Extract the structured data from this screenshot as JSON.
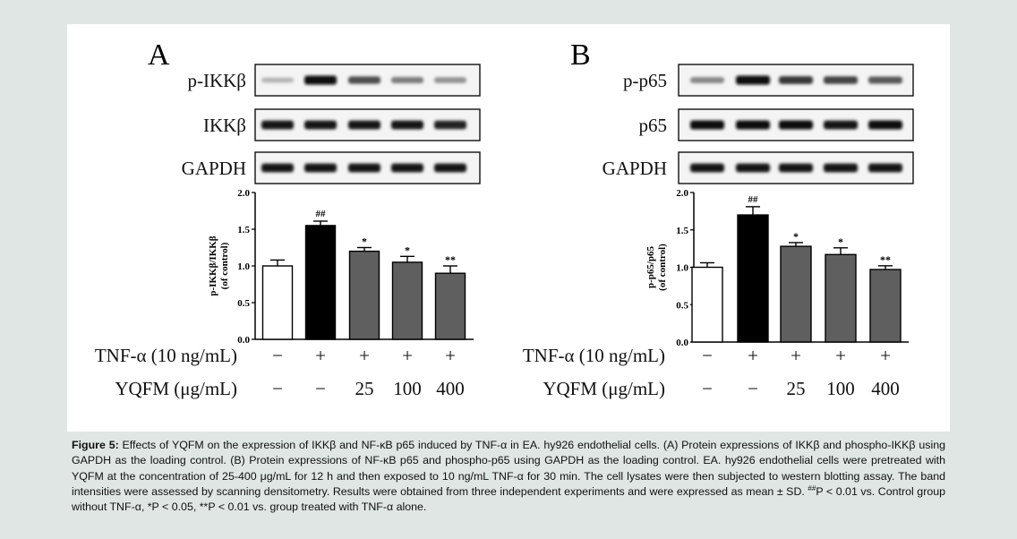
{
  "colors": {
    "background": "#dfe6e3",
    "panel": "#ffffff",
    "bar_black": "#000000",
    "bar_gray": "#5f5f5f",
    "bar_white": "#ffffff"
  },
  "panels": [
    {
      "letter": "A",
      "blots": [
        {
          "label": "p-IKKβ",
          "intensity": [
            0.25,
            1.0,
            0.7,
            0.5,
            0.4
          ]
        },
        {
          "label": "IKKβ",
          "intensity": [
            0.95,
            0.95,
            0.95,
            0.95,
            0.9
          ]
        },
        {
          "label": "GAPDH",
          "intensity": [
            0.95,
            0.95,
            0.95,
            0.95,
            0.95
          ]
        }
      ],
      "chart_data": {
        "type": "bar",
        "ylabel_line1": "p-IKKβ/IKKβ",
        "ylabel_line2": "(of control)",
        "ylim": [
          0,
          2.0
        ],
        "yticks": [
          "0.0",
          "0.5",
          "1.0",
          "1.5",
          "2.0"
        ],
        "values": [
          1.0,
          1.55,
          1.2,
          1.05,
          0.9
        ],
        "errors": [
          0.08,
          0.06,
          0.05,
          0.08,
          0.1
        ],
        "bar_colors": [
          "white",
          "black",
          "gray",
          "gray",
          "gray"
        ],
        "annotations": [
          "",
          "##",
          "*",
          "*",
          "**"
        ]
      },
      "conditions": [
        {
          "label": "TNF-α (10 ng/mL)",
          "values": [
            "−",
            "+",
            "+",
            "+",
            "+"
          ]
        },
        {
          "label": "YQFM (μg/mL)",
          "values": [
            "−",
            "−",
            "25",
            "100",
            "400"
          ]
        }
      ]
    },
    {
      "letter": "B",
      "blots": [
        {
          "label": "p-p65",
          "intensity": [
            0.45,
            1.0,
            0.8,
            0.75,
            0.65
          ]
        },
        {
          "label": "p65",
          "intensity": [
            1.0,
            1.0,
            1.0,
            0.95,
            1.0
          ]
        },
        {
          "label": "GAPDH",
          "intensity": [
            0.95,
            0.95,
            0.95,
            0.95,
            0.95
          ]
        }
      ],
      "chart_data": {
        "type": "bar",
        "ylabel_line1": "p-p65/p65",
        "ylabel_line2": "(of control)",
        "ylim": [
          0,
          2.0
        ],
        "yticks": [
          "0.0",
          "0.5",
          "1.0",
          "1.5",
          "2.0"
        ],
        "values": [
          1.0,
          1.7,
          1.28,
          1.17,
          0.97
        ],
        "errors": [
          0.06,
          0.11,
          0.05,
          0.09,
          0.05
        ],
        "bar_colors": [
          "white",
          "black",
          "gray",
          "gray",
          "gray"
        ],
        "annotations": [
          "",
          "##",
          "*",
          "*",
          "**"
        ]
      },
      "conditions": [
        {
          "label": "TNF-α (10 ng/mL)",
          "values": [
            "−",
            "+",
            "+",
            "+",
            "+"
          ]
        },
        {
          "label": "YQFM (μg/mL)",
          "values": [
            "−",
            "−",
            "25",
            "100",
            "400"
          ]
        }
      ]
    }
  ],
  "caption": {
    "figure_label": "Figure 5:",
    "text_1": " Effects of YQFM on the expression of IKKβ and NF-κB p65 induced by TNF-α in EA. hy926 endothelial cells. (A) Protein expressions of IKKβ and phospho-IKKβ using GAPDH as the loading control. (B) Protein expressions of NF-κB p65 and phospho-p65 using GAPDH as the loading control. EA. hy926 endothelial cells were pretreated with YQFM at the concentration of 25-400 μg/mL for 12 h and then exposed to 10 ng/mL  TNF-α for 30 min. The cell lysates were then subjected to western blotting assay. The band intensities were assessed by scanning densitometry. Results were obtained from three independent experiments and were expressed as mean ± SD. ",
    "sup_marks": "##",
    "text_2": "P < 0.01 vs. Control group without TNF-α, *P < 0.05, **P < 0.01 vs. group treated with TNF-α alone."
  }
}
